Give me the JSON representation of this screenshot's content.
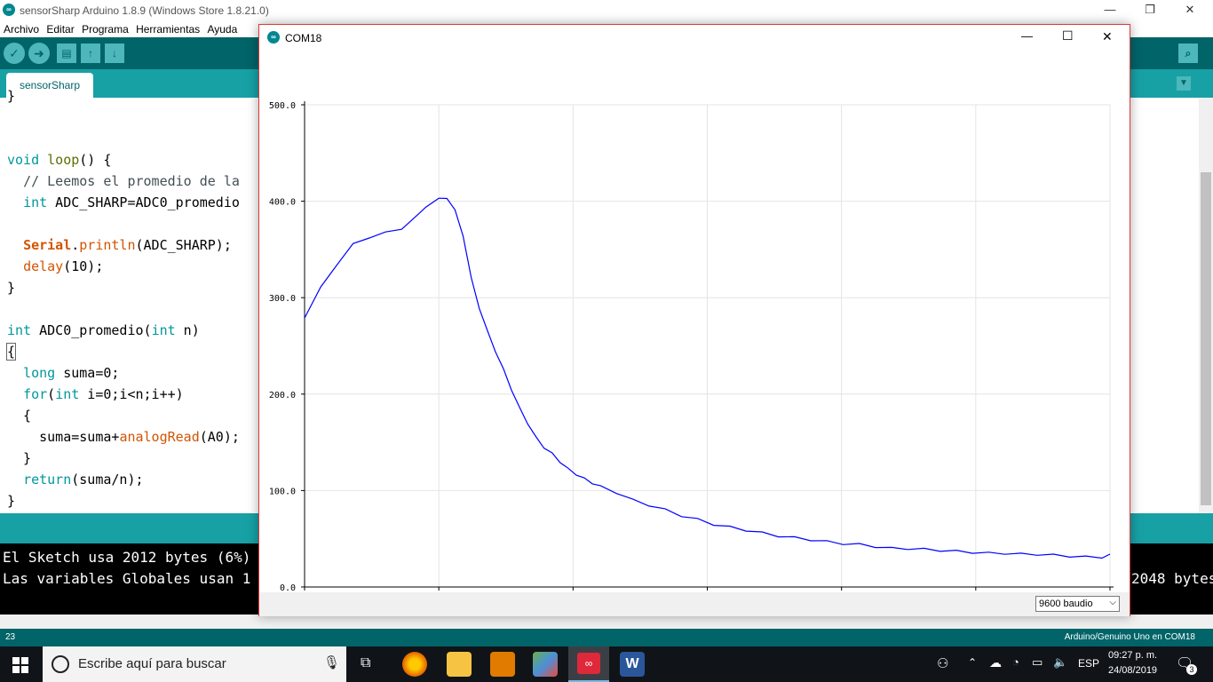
{
  "ide": {
    "title": "sensorSharp Arduino 1.8.9 (Windows Store 1.8.21.0)",
    "menu": [
      "Archivo",
      "Editar",
      "Programa",
      "Herramientas",
      "Ayuda"
    ],
    "tab": "sensorSharp",
    "code_lines": [
      "}",
      "",
      "",
      "void loop() {",
      "  // Leemos el promedio de la",
      "  int ADC_SHARP=ADC0_promedio",
      "",
      "  Serial.println(ADC_SHARP);",
      "  delay(10);",
      "}",
      "",
      "int ADC0_promedio(int n)",
      "{",
      "  long suma=0;",
      "  for(int i=0;i<n;i++)",
      "  {",
      "    suma=suma+analogRead(A0);",
      "  }",
      "  return(suma/n);",
      "}"
    ],
    "console": {
      "line1": "El Sketch usa 2012 bytes (6%)",
      "line2": "Las variables Globales usan 1",
      "right_fragment": "2048 bytes"
    },
    "status_line": "23",
    "status_board": "Arduino/Genuino Uno en COM18"
  },
  "plotter": {
    "title": "COM18",
    "baud": "9600 baudio",
    "colors": {
      "series": "#0000ff",
      "grid": "#e4e4e4",
      "border": "#e03838"
    }
  },
  "chart_data": {
    "type": "line",
    "title": "",
    "xlabel": "",
    "ylabel": "",
    "xlim": [
      2343,
      2841
    ],
    "ylim": [
      0,
      500
    ],
    "x_ticks": [
      "2343",
      "2426",
      "2509",
      "2592",
      "2675",
      "2758",
      "2841"
    ],
    "y_ticks": [
      "0.0",
      "100.0",
      "200.0",
      "300.0",
      "400.0",
      "500.0"
    ],
    "grid": true,
    "series": [
      {
        "name": "",
        "x": [
          2343,
          2353,
          2363,
          2373,
          2383,
          2393,
          2403,
          2413,
          2418,
          2426,
          2431,
          2436,
          2441,
          2446,
          2451,
          2456,
          2461,
          2466,
          2471,
          2476,
          2481,
          2486,
          2491,
          2496,
          2501,
          2506,
          2511,
          2516,
          2521,
          2526,
          2536,
          2546,
          2556,
          2566,
          2576,
          2586,
          2596,
          2606,
          2616,
          2626,
          2636,
          2646,
          2656,
          2666,
          2676,
          2686,
          2696,
          2706,
          2716,
          2726,
          2736,
          2746,
          2756,
          2766,
          2776,
          2786,
          2796,
          2806,
          2816,
          2826,
          2836,
          2841
        ],
        "y": [
          280,
          310,
          335,
          355,
          363,
          367,
          372,
          385,
          395,
          402,
          404,
          390,
          365,
          320,
          290,
          265,
          245,
          225,
          205,
          185,
          170,
          155,
          145,
          138,
          130,
          122,
          117,
          112,
          108,
          104,
          98,
          90,
          85,
          80,
          74,
          70,
          65,
          62,
          59,
          56,
          53,
          51,
          49,
          47,
          45,
          44,
          42,
          40,
          40,
          39,
          38,
          37,
          36,
          35,
          35,
          34,
          34,
          33,
          32,
          31,
          31,
          33
        ]
      }
    ]
  },
  "taskbar": {
    "search_placeholder": "Escribe aquí para buscar",
    "lang": "ESP",
    "time": "09:27 p. m.",
    "date": "24/08/2019",
    "notifications": "3"
  }
}
